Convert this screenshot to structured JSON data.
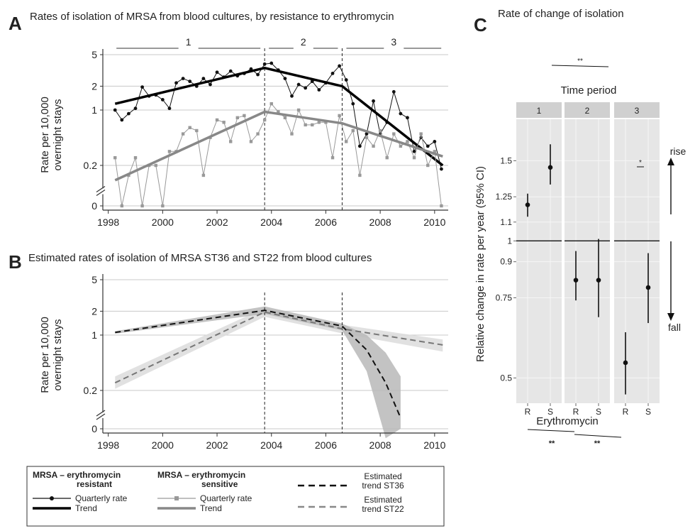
{
  "panels": {
    "a": {
      "letter": "A",
      "title": "Rates of isolation of MRSA from blood cultures, by resistance to erythromycin",
      "ylabel_1": "Rate per 10,000",
      "ylabel_2": "overnight stays"
    },
    "b": {
      "letter": "B",
      "title": "Estimated rates of isolation of MRSA ST36 and ST22 from blood cultures",
      "ylabel_1": "Rate per 10,000",
      "ylabel_2": "overnight stays"
    },
    "c": {
      "letter": "C",
      "title": "Rate of change of isolation",
      "strip_title": "Time period",
      "ylabel": "Relative change in rate per year (95% CI)",
      "xlabel": "Erythromycin",
      "rise_label": "rise",
      "fall_label": "fall"
    }
  },
  "legend": {
    "col1_title_1": "MRSA –  erythromycin",
    "col1_title_2": "resistant",
    "col2_title_1": "MRSA –  erythromycin",
    "col2_title_2": "sensitive",
    "quarterly_label": "Quarterly rate",
    "trend_label": "Trend",
    "st36_label_1": "Estimated",
    "st36_label_2": "trend ST36",
    "st22_label_1": "Estimated",
    "st22_label_2": "trend ST22"
  },
  "chart_data": [
    {
      "type": "line",
      "panel": "A",
      "x_ticks": [
        "1998",
        "2000",
        "2002",
        "2004",
        "2006",
        "2008",
        "2010"
      ],
      "y_scale": "log",
      "y_ticks": [
        "5",
        "2",
        "1",
        "0.2",
        "0"
      ],
      "y_tick_values": [
        5,
        2,
        1,
        0.2,
        0
      ],
      "xlim": [
        1997.8,
        2010.5
      ],
      "period_labels": [
        "1",
        "2",
        "3"
      ],
      "period_boundaries": [
        1998.3,
        2003.75,
        2006.6,
        2010.4
      ],
      "series": [
        {
          "name": "Quarterly rate",
          "group": "erythromycin resistant",
          "x": [
            1998.25,
            1998.5,
            1998.75,
            1999.0,
            1999.25,
            1999.5,
            1999.75,
            2000.0,
            2000.25,
            2000.5,
            2000.75,
            2001.0,
            2001.25,
            2001.5,
            2001.75,
            2002.0,
            2002.25,
            2002.5,
            2002.75,
            2003.0,
            2003.25,
            2003.5,
            2003.75,
            2004.0,
            2004.25,
            2004.5,
            2004.75,
            2005.0,
            2005.25,
            2005.5,
            2005.75,
            2006.0,
            2006.25,
            2006.5,
            2006.75,
            2007.0,
            2007.25,
            2007.5,
            2007.75,
            2008.0,
            2008.25,
            2008.5,
            2008.75,
            2009.0,
            2009.25,
            2009.5,
            2009.75,
            2010.0,
            2010.25
          ],
          "y": [
            1.0,
            0.75,
            0.9,
            1.05,
            1.95,
            1.5,
            1.55,
            1.35,
            1.05,
            2.2,
            2.5,
            2.3,
            2.0,
            2.5,
            2.1,
            3.0,
            2.6,
            3.1,
            2.7,
            2.9,
            3.3,
            2.8,
            3.8,
            3.9,
            3.2,
            2.5,
            1.5,
            2.1,
            1.9,
            2.3,
            1.8,
            2.2,
            2.9,
            3.6,
            2.4,
            1.2,
            0.35,
            0.5,
            1.3,
            0.5,
            0.7,
            1.7,
            0.9,
            0.8,
            0.3,
            0.45,
            0.35,
            0.4,
            0.18
          ]
        },
        {
          "name": "Trend",
          "group": "erythromycin resistant",
          "x": [
            1998.25,
            2003.75,
            2006.6,
            2010.3
          ],
          "y": [
            1.2,
            3.4,
            2.0,
            0.2
          ]
        },
        {
          "name": "Quarterly rate",
          "group": "erythromycin sensitive",
          "x": [
            1998.25,
            1998.5,
            1998.75,
            1999.0,
            1999.25,
            1999.5,
            1999.75,
            2000.0,
            2000.25,
            2000.5,
            2000.75,
            2001.0,
            2001.25,
            2001.5,
            2001.75,
            2002.0,
            2002.25,
            2002.5,
            2002.75,
            2003.0,
            2003.25,
            2003.5,
            2003.75,
            2004.0,
            2004.25,
            2004.5,
            2004.75,
            2005.0,
            2005.25,
            2005.5,
            2005.75,
            2006.0,
            2006.25,
            2006.5,
            2006.75,
            2007.0,
            2007.25,
            2007.5,
            2007.75,
            2008.0,
            2008.25,
            2008.5,
            2008.75,
            2009.0,
            2009.25,
            2009.5,
            2009.75,
            2010.0,
            2010.25
          ],
          "y": [
            0.25,
            0,
            0.15,
            0.25,
            0,
            0.2,
            0.2,
            0,
            0.3,
            0.3,
            0.5,
            0.6,
            0.55,
            0.15,
            0.45,
            0.75,
            0.7,
            0.4,
            0.8,
            0.85,
            0.4,
            0.5,
            0.75,
            1.2,
            0.95,
            0.8,
            0.5,
            1.0,
            0.65,
            0.65,
            0.7,
            0.7,
            0.25,
            0.85,
            0.4,
            0.55,
            0.15,
            0.45,
            0.35,
            0.55,
            0.25,
            0.5,
            0.35,
            0.4,
            0.25,
            0.5,
            0.2,
            0.3,
            0
          ]
        },
        {
          "name": "Trend",
          "group": "erythromycin sensitive",
          "x": [
            1998.25,
            2003.75,
            2006.6,
            2010.3
          ],
          "y": [
            0.13,
            0.95,
            0.68,
            0.26
          ]
        }
      ]
    },
    {
      "type": "line",
      "panel": "B",
      "x_ticks": [
        "1998",
        "2000",
        "2002",
        "2004",
        "2006",
        "2008",
        "2010"
      ],
      "y_scale": "log",
      "y_ticks": [
        "5",
        "2",
        "1",
        "0.2",
        "0"
      ],
      "y_tick_values": [
        5,
        2,
        1,
        0.2,
        0
      ],
      "xlim": [
        1997.8,
        2010.5
      ],
      "series": [
        {
          "name": "Estimated trend ST36",
          "x": [
            1998.25,
            2003.75,
            2006.6,
            2007.5,
            2008.2,
            2008.75
          ],
          "y": [
            1.08,
            2.05,
            1.3,
            0.65,
            0.25,
            0.09
          ],
          "band_upper": [
            1.12,
            2.3,
            1.4,
            1.0,
            0.6,
            0.3
          ],
          "band_lower": [
            1.04,
            1.85,
            1.15,
            0.35,
            0.05,
            0.0
          ]
        },
        {
          "name": "Estimated trend ST22",
          "x": [
            1998.25,
            2003.75,
            2006.6,
            2010.3
          ],
          "y": [
            0.25,
            1.95,
            1.2,
            0.75
          ],
          "band_upper": [
            0.3,
            2.2,
            1.35,
            0.88
          ],
          "band_lower": [
            0.21,
            1.7,
            1.05,
            0.62
          ]
        }
      ]
    },
    {
      "type": "scatter",
      "panel": "C",
      "title": "Rate of change of isolation",
      "facet_title": "Time period",
      "facets": [
        "1",
        "2",
        "3"
      ],
      "categories": [
        "R",
        "S"
      ],
      "y_scale": "log",
      "y_ticks": [
        "1.5",
        "1.25",
        "1.1",
        "1",
        "0.9",
        "0.75",
        "0.5"
      ],
      "y_tick_values": [
        1.5,
        1.25,
        1.1,
        1.0,
        0.9,
        0.75,
        0.5
      ],
      "ylim": [
        0.44,
        1.85
      ],
      "points": [
        {
          "facet": "1",
          "category": "R",
          "y": 1.2,
          "lower": 1.13,
          "upper": 1.27
        },
        {
          "facet": "1",
          "category": "S",
          "y": 1.45,
          "lower": 1.33,
          "upper": 1.63
        },
        {
          "facet": "2",
          "category": "R",
          "y": 0.82,
          "lower": 0.74,
          "upper": 0.95
        },
        {
          "facet": "2",
          "category": "S",
          "y": 0.82,
          "lower": 0.68,
          "upper": 1.01
        },
        {
          "facet": "3",
          "category": "R",
          "y": 0.54,
          "lower": 0.46,
          "upper": 0.63
        },
        {
          "facet": "3",
          "category": "S",
          "y": 0.79,
          "lower": 0.66,
          "upper": 0.94
        }
      ],
      "significance": [
        "**",
        "*",
        "**",
        "**"
      ]
    }
  ]
}
